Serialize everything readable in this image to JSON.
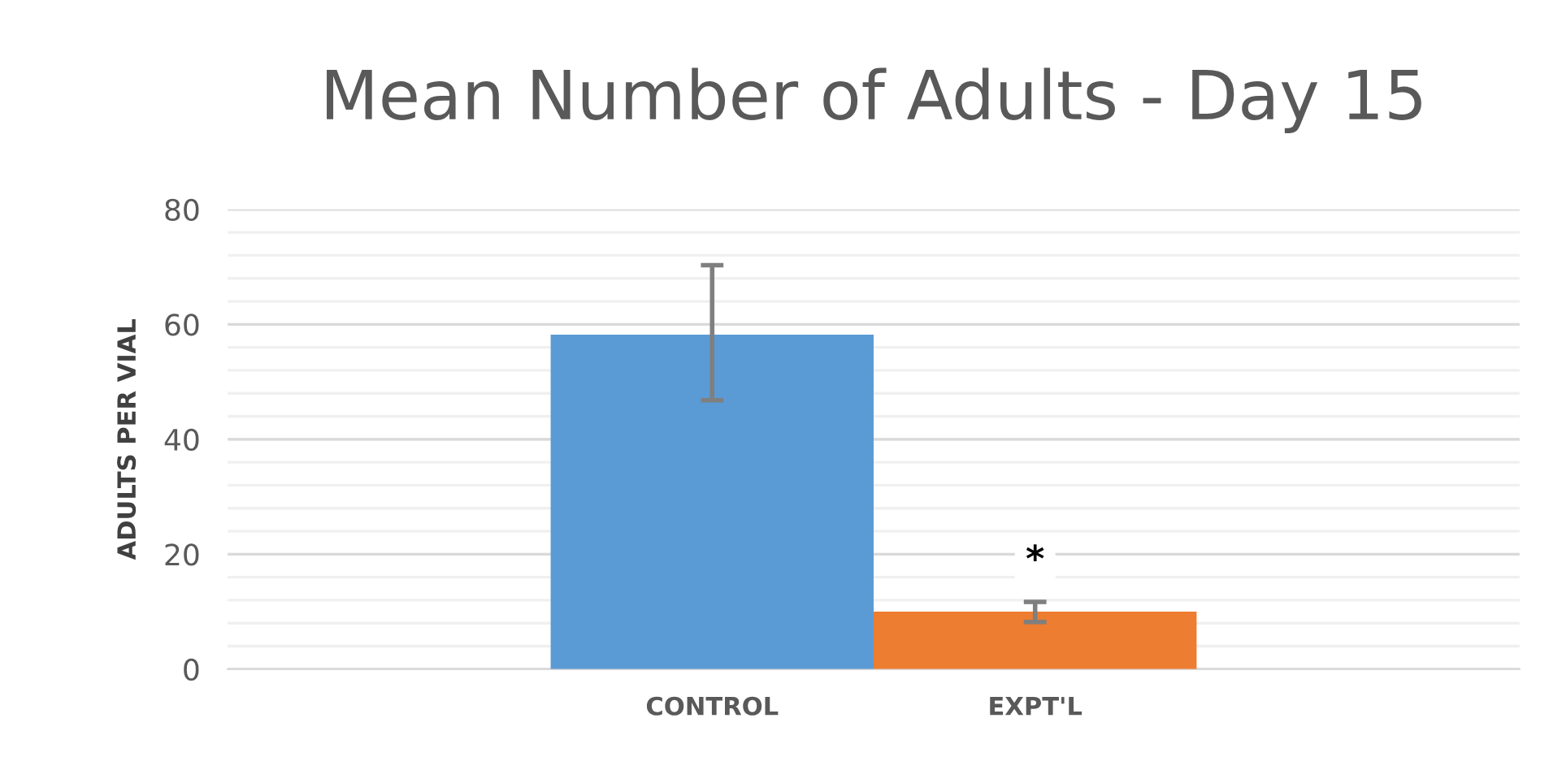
{
  "chart_data": {
    "type": "bar",
    "title": "Mean Number of Adults - Day 15",
    "ylabel": "ADULTS PER VIAL",
    "categories": [
      "CONTROL",
      "EXPT'L"
    ],
    "values": [
      58.2,
      10.0
    ],
    "colors": [
      "#5b9bd5",
      "#ed7d31"
    ],
    "errors": [
      [
        46.8,
        70.3
      ],
      [
        8.2,
        11.7
      ]
    ],
    "ylim": [
      0,
      80
    ],
    "yticks": [
      0,
      20,
      40,
      60,
      80
    ],
    "grid": "y",
    "annotations": [
      "*"
    ]
  }
}
